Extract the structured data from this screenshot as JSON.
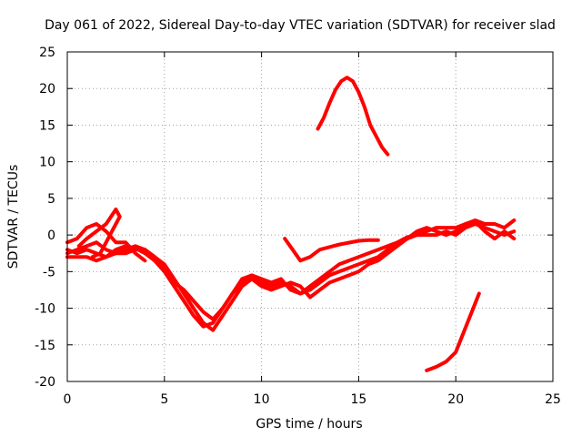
{
  "chart_data": {
    "type": "line",
    "title": "Day 061 of 2022, Sidereal Day-to-day VTEC variation (SDTVAR) for receiver slad",
    "xlabel": "GPS time / hours",
    "ylabel": "SDTVAR / TECUs",
    "xlim": [
      0,
      25
    ],
    "ylim": [
      -20,
      25
    ],
    "xticks": [
      0,
      5,
      10,
      15,
      20,
      25
    ],
    "yticks": [
      -20,
      -15,
      -10,
      -5,
      0,
      5,
      10,
      15,
      20,
      25
    ],
    "grid": true,
    "color": "#ff0000",
    "series": [
      {
        "name": "main-trace-a",
        "points": [
          [
            0,
            -2
          ],
          [
            0.5,
            -2.5
          ],
          [
            1,
            -2
          ],
          [
            1.5,
            -2.5
          ],
          [
            2,
            -3
          ],
          [
            2.5,
            -2.5
          ],
          [
            3,
            -2
          ],
          [
            3.5,
            -1.5
          ],
          [
            4,
            -2
          ],
          [
            4.5,
            -3
          ],
          [
            5,
            -4
          ],
          [
            5.5,
            -6
          ],
          [
            6,
            -8
          ],
          [
            6.5,
            -10
          ],
          [
            7,
            -12
          ],
          [
            7.5,
            -13
          ],
          [
            8,
            -11
          ],
          [
            8.5,
            -9
          ],
          [
            9,
            -7
          ],
          [
            9.5,
            -6
          ],
          [
            10,
            -6.5
          ],
          [
            10.5,
            -7
          ],
          [
            11,
            -6.5
          ],
          [
            11.5,
            -7
          ],
          [
            12,
            -8
          ],
          [
            12.5,
            -7.5
          ],
          [
            13,
            -6.5
          ],
          [
            13.5,
            -5.5
          ],
          [
            14,
            -5
          ],
          [
            14.5,
            -4.5
          ],
          [
            15,
            -4
          ],
          [
            15.5,
            -3.5
          ],
          [
            16,
            -3
          ],
          [
            16.5,
            -2
          ],
          [
            17,
            -1
          ],
          [
            17.5,
            -0.5
          ],
          [
            18,
            0
          ],
          [
            18.5,
            0
          ],
          [
            19,
            0
          ],
          [
            19.5,
            0.5
          ],
          [
            20,
            0
          ],
          [
            20.5,
            1
          ],
          [
            21,
            1.5
          ],
          [
            21.5,
            1
          ],
          [
            22,
            0.5
          ],
          [
            22.5,
            0
          ],
          [
            23,
            0.5
          ]
        ]
      },
      {
        "name": "main-trace-b",
        "points": [
          [
            0,
            -3
          ],
          [
            0.5,
            -3
          ],
          [
            1,
            -3
          ],
          [
            1.5,
            -3.5
          ],
          [
            2,
            -3
          ],
          [
            2.5,
            -2
          ],
          [
            3,
            -1.5
          ],
          [
            3.5,
            -1.8
          ],
          [
            4,
            -2.5
          ],
          [
            4.5,
            -3.5
          ],
          [
            5,
            -5
          ],
          [
            5.5,
            -7
          ],
          [
            6,
            -9
          ],
          [
            6.5,
            -11
          ],
          [
            7,
            -12.5
          ],
          [
            7.5,
            -12
          ],
          [
            8,
            -10
          ],
          [
            8.5,
            -8
          ],
          [
            9,
            -6.5
          ],
          [
            9.5,
            -6
          ],
          [
            10,
            -7
          ],
          [
            10.5,
            -7.5
          ],
          [
            11,
            -7
          ],
          [
            11.5,
            -6.5
          ],
          [
            12,
            -7
          ],
          [
            12.5,
            -8.5
          ],
          [
            13,
            -7.5
          ],
          [
            13.5,
            -6.5
          ],
          [
            14,
            -6
          ],
          [
            14.5,
            -5.5
          ],
          [
            15,
            -5
          ],
          [
            15.5,
            -4
          ],
          [
            16,
            -3.5
          ],
          [
            16.5,
            -2.5
          ],
          [
            17,
            -1.5
          ],
          [
            17.5,
            -0.5
          ],
          [
            18,
            0.5
          ],
          [
            18.5,
            1
          ],
          [
            19,
            0.5
          ],
          [
            19.5,
            0
          ],
          [
            20,
            0.5
          ],
          [
            20.5,
            1.5
          ],
          [
            21,
            2
          ],
          [
            21.5,
            1.5
          ],
          [
            22,
            1.5
          ],
          [
            22.5,
            1
          ],
          [
            23,
            2
          ]
        ]
      },
      {
        "name": "main-trace-c",
        "points": [
          [
            0,
            -2.5
          ],
          [
            0.5,
            -2
          ],
          [
            1,
            -1.5
          ],
          [
            1.5,
            -1
          ],
          [
            2,
            -2
          ],
          [
            2.5,
            -2.5
          ],
          [
            3,
            -2.5
          ],
          [
            3.5,
            -2
          ],
          [
            4,
            -2
          ],
          [
            4.5,
            -3
          ],
          [
            5,
            -4.5
          ],
          [
            5.5,
            -6.5
          ],
          [
            6,
            -7.5
          ],
          [
            6.5,
            -9
          ],
          [
            7,
            -10.5
          ],
          [
            7.5,
            -11.5
          ],
          [
            8,
            -10
          ],
          [
            8.5,
            -8
          ],
          [
            9,
            -6
          ],
          [
            9.5,
            -5.5
          ],
          [
            10,
            -6
          ],
          [
            10.5,
            -6.5
          ],
          [
            11,
            -6
          ],
          [
            11.5,
            -7.5
          ],
          [
            12,
            -8
          ],
          [
            12.5,
            -7
          ],
          [
            13,
            -6
          ],
          [
            13.5,
            -5
          ],
          [
            14,
            -4
          ],
          [
            14.5,
            -3.5
          ],
          [
            15,
            -3
          ],
          [
            15.5,
            -2.5
          ],
          [
            16,
            -2
          ],
          [
            16.5,
            -1.5
          ],
          [
            17,
            -1
          ],
          [
            17.5,
            -0.3
          ],
          [
            18,
            0
          ],
          [
            18.5,
            0.5
          ],
          [
            19,
            1
          ],
          [
            19.5,
            1
          ],
          [
            20,
            1
          ],
          [
            20.5,
            1.5
          ],
          [
            21,
            1.8
          ],
          [
            21.5,
            0.5
          ],
          [
            22,
            -0.5
          ],
          [
            22.5,
            0.5
          ],
          [
            23,
            -0.5
          ]
        ]
      },
      {
        "name": "early-hump",
        "points": [
          [
            0.6,
            -1.5
          ],
          [
            1,
            -0.5
          ],
          [
            1.5,
            0.5
          ],
          [
            2,
            1.5
          ],
          [
            2.5,
            3.5
          ],
          [
            2.7,
            2.5
          ],
          [
            2.3,
            0.5
          ],
          [
            2,
            -1
          ],
          [
            1.7,
            -2.5
          ],
          [
            1.3,
            -3
          ]
        ]
      },
      {
        "name": "early-branch",
        "points": [
          [
            0,
            -1
          ],
          [
            0.5,
            -0.5
          ],
          [
            1,
            1
          ],
          [
            1.5,
            1.5
          ],
          [
            2,
            0.5
          ],
          [
            2.5,
            -1
          ],
          [
            3,
            -1
          ],
          [
            3.5,
            -2.5
          ],
          [
            4,
            -3.5
          ]
        ]
      },
      {
        "name": "evening-segment",
        "points": [
          [
            11.2,
            -0.5
          ],
          [
            11.6,
            -2
          ],
          [
            12,
            -3.5
          ],
          [
            12.5,
            -3
          ],
          [
            13,
            -2
          ],
          [
            14,
            -1.3
          ],
          [
            15,
            -0.8
          ],
          [
            15.5,
            -0.7
          ],
          [
            16,
            -0.7
          ]
        ]
      },
      {
        "name": "positive-arc",
        "points": [
          [
            12.9,
            14.5
          ],
          [
            13.2,
            16
          ],
          [
            13.5,
            18
          ],
          [
            13.8,
            19.8
          ],
          [
            14.1,
            21
          ],
          [
            14.4,
            21.5
          ],
          [
            14.7,
            21
          ],
          [
            15,
            19.5
          ],
          [
            15.3,
            17.5
          ],
          [
            15.6,
            15
          ],
          [
            15.9,
            13.5
          ],
          [
            16.2,
            12
          ],
          [
            16.5,
            11
          ]
        ]
      },
      {
        "name": "negative-arc",
        "points": [
          [
            18.5,
            -18.5
          ],
          [
            19,
            -18
          ],
          [
            19.5,
            -17.3
          ],
          [
            20,
            -16
          ],
          [
            20.3,
            -14
          ],
          [
            20.6,
            -12
          ],
          [
            20.9,
            -10
          ],
          [
            21.2,
            -8
          ]
        ]
      }
    ]
  }
}
